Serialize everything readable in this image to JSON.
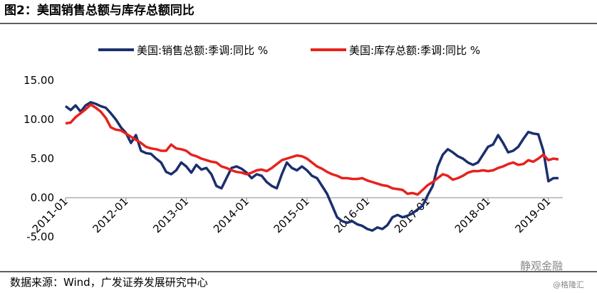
{
  "chart_data": {
    "type": "line",
    "title": "图2：美国销售总额与库存总额同比",
    "source": "数据来源：Wind，广发证券发展研究中心",
    "watermark": "静观金融",
    "watermark_sub": "@格隆汇",
    "x": [
      "2011-01",
      "2011-02",
      "2011-03",
      "2011-04",
      "2011-05",
      "2011-06",
      "2011-07",
      "2011-08",
      "2011-09",
      "2011-10",
      "2011-11",
      "2011-12",
      "2012-01",
      "2012-02",
      "2012-03",
      "2012-04",
      "2012-05",
      "2012-06",
      "2012-07",
      "2012-08",
      "2012-09",
      "2012-10",
      "2012-11",
      "2012-12",
      "2013-01",
      "2013-02",
      "2013-03",
      "2013-04",
      "2013-05",
      "2013-06",
      "2013-07",
      "2013-08",
      "2013-09",
      "2013-10",
      "2013-11",
      "2013-12",
      "2014-01",
      "2014-02",
      "2014-03",
      "2014-04",
      "2014-05",
      "2014-06",
      "2014-07",
      "2014-08",
      "2014-09",
      "2014-10",
      "2014-11",
      "2014-12",
      "2015-01",
      "2015-02",
      "2015-03",
      "2015-04",
      "2015-05",
      "2015-06",
      "2015-07",
      "2015-08",
      "2015-09",
      "2015-10",
      "2015-11",
      "2015-12",
      "2016-01",
      "2016-02",
      "2016-03",
      "2016-04",
      "2016-05",
      "2016-06",
      "2016-07",
      "2016-08",
      "2016-09",
      "2016-10",
      "2016-11",
      "2016-12",
      "2017-01",
      "2017-02",
      "2017-03",
      "2017-04",
      "2017-05",
      "2017-06",
      "2017-07",
      "2017-08",
      "2017-09",
      "2017-10",
      "2017-11",
      "2017-12",
      "2018-01",
      "2018-02",
      "2018-03",
      "2018-04",
      "2018-05",
      "2018-06",
      "2018-07",
      "2018-08",
      "2018-09",
      "2018-10",
      "2018-11",
      "2018-12",
      "2019-01",
      "2019-02",
      "2019-03"
    ],
    "series": [
      {
        "name": "美国:销售总额:季调:同比 %",
        "color": "#1b2f6e",
        "values": [
          11.7,
          11.2,
          11.8,
          11.0,
          11.8,
          12.2,
          12.0,
          11.7,
          11.5,
          10.8,
          10.0,
          9.0,
          8.3,
          7.0,
          8.0,
          6.0,
          5.7,
          5.6,
          5.0,
          4.5,
          3.3,
          3.0,
          3.5,
          4.5,
          4.0,
          3.2,
          4.2,
          3.6,
          3.8,
          3.0,
          1.5,
          1.2,
          2.5,
          3.8,
          4.0,
          3.7,
          3.2,
          2.5,
          3.0,
          2.8,
          2.0,
          1.5,
          1.2,
          3.0,
          4.5,
          3.8,
          3.5,
          4.0,
          3.5,
          2.8,
          2.5,
          1.5,
          0.5,
          -1.0,
          -2.5,
          -3.0,
          -3.2,
          -3.0,
          -3.4,
          -3.6,
          -4.0,
          -4.2,
          -3.8,
          -4.0,
          -3.5,
          -2.5,
          -2.2,
          -2.5,
          -2.3,
          -2.0,
          -1.5,
          -1.0,
          0.3,
          1.5,
          4.0,
          5.5,
          6.2,
          5.8,
          5.3,
          5.0,
          4.5,
          4.2,
          4.5,
          5.5,
          6.5,
          6.8,
          8.0,
          7.0,
          5.8,
          6.0,
          6.5,
          7.5,
          8.4,
          8.2,
          8.1,
          6.0,
          2.1,
          2.5,
          2.5
        ]
      },
      {
        "name": "美国:库存总额:季调:同比 %",
        "color": "#e8211c",
        "values": [
          9.5,
          9.6,
          10.3,
          10.8,
          11.3,
          11.9,
          11.5,
          11.0,
          10.2,
          9.0,
          8.7,
          8.6,
          8.2,
          7.8,
          7.4,
          7.0,
          6.5,
          6.3,
          6.2,
          6.0,
          6.0,
          6.8,
          6.3,
          6.2,
          6.0,
          5.5,
          5.3,
          5.0,
          4.8,
          4.6,
          4.5,
          4.0,
          3.8,
          3.5,
          3.3,
          3.2,
          3.0,
          3.2,
          3.5,
          3.6,
          3.4,
          3.8,
          4.3,
          4.8,
          5.0,
          5.2,
          5.4,
          5.3,
          5.0,
          4.5,
          4.0,
          3.7,
          3.3,
          3.0,
          2.8,
          2.5,
          2.5,
          2.4,
          2.4,
          2.5,
          2.2,
          2.0,
          1.8,
          1.6,
          1.5,
          1.2,
          1.1,
          1.0,
          0.5,
          0.6,
          0.4,
          1.0,
          1.6,
          2.0,
          2.5,
          3.0,
          2.8,
          2.3,
          2.5,
          2.8,
          3.2,
          3.4,
          3.4,
          3.5,
          3.4,
          3.5,
          3.8,
          4.0,
          4.3,
          4.5,
          4.2,
          4.3,
          4.8,
          4.6,
          5.0,
          5.5,
          4.8,
          5.0,
          4.9
        ]
      }
    ],
    "ylim": [
      -5,
      15
    ],
    "yticks": [
      {
        "value": -5,
        "label": "-5.00"
      },
      {
        "value": 0,
        "label": "0.00"
      },
      {
        "value": 5,
        "label": "5.00"
      },
      {
        "value": 10,
        "label": "10.00"
      },
      {
        "value": 15,
        "label": "15.00"
      }
    ],
    "xticks": [
      "2011-01",
      "2012-01",
      "2013-01",
      "2014-01",
      "2015-01",
      "2016-01",
      "2017-01",
      "2018-01",
      "2019-01"
    ],
    "grid": false
  }
}
